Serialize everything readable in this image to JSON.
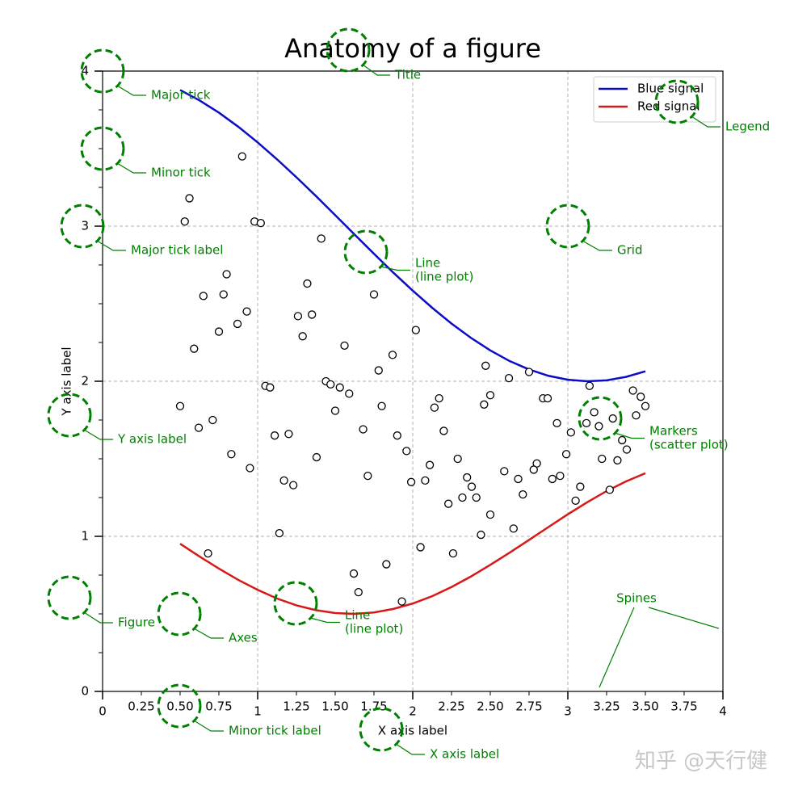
{
  "chart_data": {
    "type": "line",
    "title": "Anatomy of a figure",
    "xlabel": "X axis label",
    "ylabel": "Y axis label",
    "xlim": [
      0,
      4
    ],
    "ylim": [
      0,
      4
    ],
    "xticks": [
      0,
      1,
      2,
      3,
      4
    ],
    "yticks": [
      0,
      1,
      2,
      3,
      4
    ],
    "xminor_ticks": [
      0.25,
      {
        "value": 0.5,
        "label": "0.50"
      },
      0.75,
      1.25,
      {
        "value": 1.5,
        "label": "1.50"
      },
      1.75,
      2.25,
      {
        "value": 2.5,
        "label": "2.50"
      },
      2.75,
      3.25,
      {
        "value": 3.5,
        "label": "3.50"
      },
      3.75
    ],
    "yminor_ticks": [
      0.25,
      0.5,
      0.75,
      1.25,
      1.5,
      1.75,
      2.25,
      2.5,
      2.75,
      3.25,
      3.5,
      3.75
    ],
    "grid": true,
    "legend": "upper right",
    "series": [
      {
        "type": "line",
        "name": "Blue signal",
        "color": "#0c0cc4",
        "x": [
          0.5,
          0.625,
          0.75,
          0.875,
          1.0,
          1.125,
          1.25,
          1.375,
          1.5,
          1.625,
          1.75,
          1.875,
          2.0,
          2.125,
          2.25,
          2.375,
          2.5,
          2.625,
          2.75,
          2.875,
          3.0,
          3.125,
          3.25,
          3.375,
          3.5
        ],
        "values": [
          3.878,
          3.811,
          3.732,
          3.641,
          3.54,
          3.431,
          3.315,
          3.195,
          3.071,
          2.946,
          2.822,
          2.7,
          2.584,
          2.474,
          2.372,
          2.28,
          2.199,
          2.13,
          2.076,
          2.035,
          2.01,
          2.0,
          2.006,
          2.028,
          2.064
        ]
      },
      {
        "type": "line",
        "name": "Red signal",
        "color": "#d81818",
        "x": [
          0.5,
          0.625,
          0.75,
          0.875,
          1.0,
          1.125,
          1.25,
          1.375,
          1.5,
          1.625,
          1.75,
          1.875,
          2.0,
          2.125,
          2.25,
          2.375,
          2.5,
          2.625,
          2.75,
          2.875,
          3.0,
          3.125,
          3.25,
          3.375,
          3.5
        ],
        "values": [
          0.952,
          0.87,
          0.792,
          0.719,
          0.655,
          0.599,
          0.555,
          0.524,
          0.505,
          0.5,
          0.509,
          0.532,
          0.567,
          0.614,
          0.673,
          0.741,
          0.816,
          0.895,
          0.977,
          1.06,
          1.142,
          1.22,
          1.292,
          1.354,
          1.407
        ]
      },
      {
        "type": "scatter",
        "color": "#000000",
        "x": [
          0.9,
          0.56,
          0.53,
          0.98,
          1.02,
          1.41,
          0.8,
          1.32,
          0.65,
          0.78,
          1.75,
          0.93,
          1.26,
          1.35,
          0.87,
          0.75,
          1.29,
          2.02,
          0.59,
          1.56,
          1.87,
          1.78,
          2.47,
          2.62,
          2.75,
          3.14,
          1.05,
          1.08,
          1.44,
          1.47,
          1.53,
          1.59,
          2.17,
          2.5,
          3.42,
          3.47,
          3.5,
          2.84,
          2.87,
          2.46,
          1.8,
          2.14,
          0.5,
          1.5,
          3.17,
          3.44,
          3.29,
          0.71,
          2.93,
          3.12,
          3.2,
          0.62,
          1.68,
          3.02,
          2.2,
          1.11,
          1.2,
          1.9,
          3.35,
          3.38,
          1.96,
          0.83,
          2.99,
          1.38,
          2.29,
          3.22,
          3.32,
          2.11,
          2.8,
          0.95,
          2.78,
          2.59,
          1.71,
          2.95,
          2.35,
          1.17,
          2.68,
          2.9,
          2.08,
          1.99,
          1.23,
          2.38,
          3.08,
          3.27,
          2.71,
          2.41,
          2.32,
          3.05,
          2.23,
          2.5,
          2.65,
          1.14,
          2.44,
          2.05,
          0.68,
          2.26,
          1.83,
          1.62,
          1.65,
          1.93
        ],
        "values": [
          3.45,
          3.18,
          3.03,
          3.03,
          3.02,
          2.92,
          2.69,
          2.63,
          2.55,
          2.56,
          2.56,
          2.45,
          2.42,
          2.43,
          2.37,
          2.32,
          2.29,
          2.33,
          2.21,
          2.23,
          2.17,
          2.07,
          2.1,
          2.02,
          2.06,
          1.97,
          1.97,
          1.96,
          2.0,
          1.98,
          1.96,
          1.92,
          1.89,
          1.91,
          1.94,
          1.9,
          1.84,
          1.89,
          1.89,
          1.85,
          1.84,
          1.83,
          1.84,
          1.81,
          1.8,
          1.78,
          1.76,
          1.75,
          1.73,
          1.73,
          1.71,
          1.7,
          1.69,
          1.67,
          1.68,
          1.65,
          1.66,
          1.65,
          1.62,
          1.56,
          1.55,
          1.53,
          1.53,
          1.51,
          1.5,
          1.5,
          1.49,
          1.46,
          1.47,
          1.44,
          1.43,
          1.42,
          1.39,
          1.39,
          1.38,
          1.36,
          1.37,
          1.37,
          1.36,
          1.35,
          1.33,
          1.32,
          1.32,
          1.3,
          1.27,
          1.25,
          1.25,
          1.23,
          1.21,
          1.14,
          1.05,
          1.02,
          1.01,
          0.93,
          0.89,
          0.89,
          0.82,
          0.76,
          0.64,
          0.58
        ]
      }
    ],
    "annotations": [
      {
        "lines": [
          "Major tick"
        ]
      },
      {
        "lines": [
          "Minor tick"
        ]
      },
      {
        "lines": [
          "Major tick label"
        ]
      },
      {
        "lines": [
          "Y axis label"
        ]
      },
      {
        "lines": [
          "Figure"
        ]
      },
      {
        "lines": [
          "Axes"
        ]
      },
      {
        "lines": [
          "Minor tick label"
        ]
      },
      {
        "lines": [
          "X axis label"
        ]
      },
      {
        "lines": [
          "Line",
          "(line plot)"
        ]
      },
      {
        "lines": [
          "Line",
          "(line plot)"
        ]
      },
      {
        "lines": [
          "Markers",
          "(scatter plot)"
        ]
      },
      {
        "lines": [
          "Grid"
        ]
      },
      {
        "lines": [
          "Legend"
        ]
      },
      {
        "lines": [
          "Title"
        ]
      },
      {
        "lines": [
          "Spines"
        ]
      }
    ],
    "watermark": "知乎 @天行健"
  }
}
